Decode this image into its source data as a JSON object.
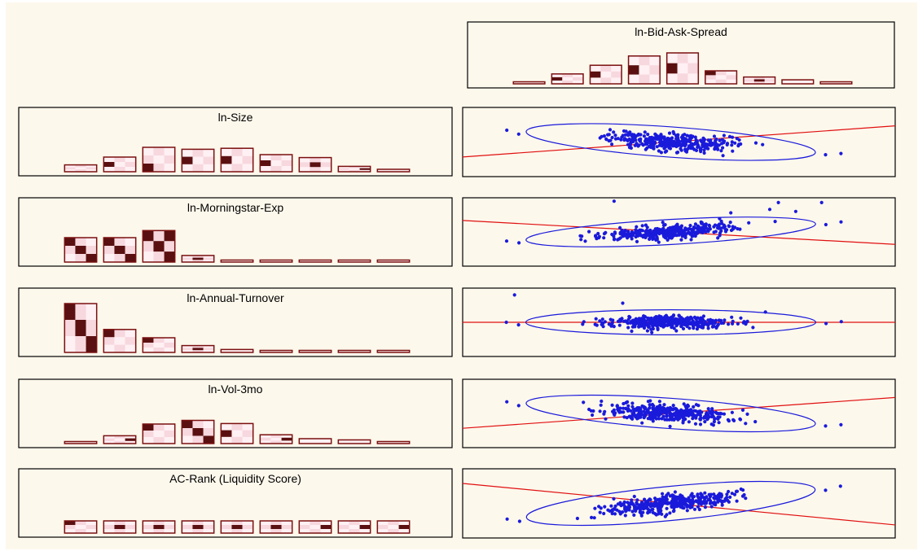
{
  "colors": {
    "background": "#fdf8ec",
    "bar_outline": "#7a1010",
    "cell_light": "#fff0f3",
    "cell_mid": "#f7d8df",
    "cell_dark": "#5a1010",
    "scatter_points": "#1a1adb",
    "ellipse": "#1a1adb",
    "regression_line": "#e01010"
  },
  "chart_data": [
    {
      "type": "bar",
      "title": "ln-Bid-Ask-Spread",
      "values": [
        0.05,
        0.32,
        0.6,
        0.9,
        1.0,
        0.42,
        0.22,
        0.13,
        0.06
      ],
      "dark_cell": [
        null,
        [
          1,
          0
        ],
        [
          1,
          0
        ],
        [
          1,
          0
        ],
        [
          1,
          0
        ],
        [
          0,
          0
        ],
        [
          1,
          1
        ],
        [
          2,
          2
        ],
        null
      ],
      "dark_level": [
        0,
        1,
        1,
        1,
        1,
        1,
        1,
        1,
        0
      ]
    },
    {
      "type": "bar",
      "title": "ln-Size",
      "values": [
        0.28,
        0.6,
        1.0,
        0.92,
        0.96,
        0.7,
        0.58,
        0.22,
        0.1
      ],
      "dark_cell": [
        null,
        [
          1,
          0
        ],
        [
          2,
          0
        ],
        [
          1,
          0
        ],
        [
          1,
          0
        ],
        [
          1,
          0
        ],
        [
          1,
          1
        ],
        [
          1,
          2
        ],
        null
      ],
      "dark_level": [
        0,
        1,
        1,
        1,
        1,
        1,
        1,
        1,
        0
      ]
    },
    {
      "type": "bar",
      "title": "ln-Morningstar-Exp",
      "values": [
        1.0,
        1.0,
        1.29,
        0.27,
        0.08,
        0.04,
        0.04,
        0.04,
        0.07
      ],
      "dark_cell": [
        [
          0,
          0
        ],
        [
          0,
          0
        ],
        [
          0,
          2
        ],
        [
          1,
          1
        ],
        null,
        null,
        null,
        null,
        null
      ],
      "dark_level": [
        1,
        1,
        1,
        1,
        0,
        0,
        0,
        0,
        0
      ],
      "diagonal": [
        true,
        true,
        true,
        false,
        false,
        false,
        false,
        false,
        false
      ]
    },
    {
      "type": "bar",
      "title": "ln-Annual-Turnover",
      "values": [
        1.0,
        0.47,
        0.3,
        0.14,
        0.06,
        0.03,
        0.03,
        0.03,
        0.03
      ],
      "dark_cell": [
        [
          0,
          0
        ],
        [
          0,
          0
        ],
        [
          0,
          0
        ],
        [
          1,
          1
        ],
        null,
        null,
        null,
        null,
        null
      ],
      "dark_level": [
        1,
        1,
        1,
        1,
        0,
        0,
        0,
        0,
        0
      ],
      "diagonal": [
        true,
        false,
        false,
        false,
        false,
        false,
        false,
        false,
        false
      ]
    },
    {
      "type": "bar",
      "title": "ln-Vol-3mo",
      "values": [
        0.07,
        0.32,
        0.8,
        0.95,
        0.82,
        0.36,
        0.2,
        0.15,
        0.07
      ],
      "dark_cell": [
        null,
        [
          1,
          2
        ],
        [
          0,
          0
        ],
        [
          0,
          0
        ],
        [
          1,
          0
        ],
        [
          1,
          2
        ],
        [
          1,
          2
        ],
        [
          2,
          2
        ],
        null
      ],
      "dark_level": [
        0,
        1,
        1,
        1,
        1,
        1,
        1,
        1,
        0
      ],
      "diagonal": [
        false,
        false,
        false,
        true,
        false,
        false,
        false,
        false,
        false
      ]
    },
    {
      "type": "bar",
      "title": "AC-Rank (Liquidity Score)",
      "values": [
        0.5,
        0.5,
        0.5,
        0.5,
        0.5,
        0.5,
        0.5,
        0.5,
        0.5
      ],
      "dark_cell": [
        [
          0,
          0
        ],
        [
          1,
          1
        ],
        [
          1,
          1
        ],
        [
          1,
          1
        ],
        [
          1,
          1
        ],
        [
          1,
          1
        ],
        [
          1,
          2
        ],
        [
          1,
          2
        ],
        [
          1,
          2
        ]
      ],
      "dark_level": [
        1,
        1,
        1,
        1,
        1,
        1,
        1,
        1,
        1
      ]
    },
    {
      "type": "scatter",
      "x_variable": "ln-Bid-Ask-Spread",
      "y_variable": "ln-Size",
      "slope": -0.45,
      "spread": 0.25,
      "ellipse_width": 0.7,
      "outliers": []
    },
    {
      "type": "scatter",
      "x_variable": "ln-Bid-Ask-Spread",
      "y_variable": "ln-Morningstar-Exp",
      "slope": 0.35,
      "spread": 0.18,
      "ellipse_width": 0.3,
      "outliers": [
        [
          0.35,
          0.95
        ],
        [
          0.47,
          1.03
        ],
        [
          0.62,
          0.78
        ],
        [
          0.67,
          1.05
        ],
        [
          0.71,
          0.83
        ],
        [
          0.73,
          0.93
        ],
        [
          0.77,
          0.8
        ],
        [
          0.83,
          0.93
        ]
      ]
    },
    {
      "type": "scatter",
      "x_variable": "ln-Bid-Ask-Spread",
      "y_variable": "ln-Annual-Turnover",
      "slope": 0.0,
      "spread": 0.18,
      "ellipse_width": 0.3,
      "outliers": [
        [
          0.12,
          0.9
        ],
        [
          0.37,
          0.78
        ],
        [
          0.5,
          0.6
        ],
        [
          0.7,
          0.65
        ]
      ]
    },
    {
      "type": "scatter",
      "x_variable": "ln-Bid-Ask-Spread",
      "y_variable": "ln-Vol-3mo",
      "slope": -0.45,
      "spread": 0.25,
      "ellipse_width": 0.7,
      "outliers": []
    },
    {
      "type": "scatter",
      "x_variable": "ln-Bid-Ask-Spread",
      "y_variable": "AC-Rank (Liquidity Score)",
      "slope": 0.6,
      "spread": 0.22,
      "ellipse_width": 1.0,
      "outliers": []
    }
  ]
}
